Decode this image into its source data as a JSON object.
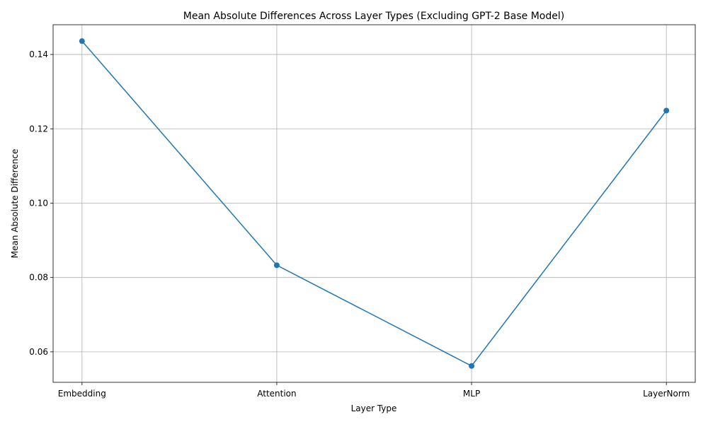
{
  "chart_data": {
    "type": "line",
    "title": "Mean Absolute Differences Across Layer Types (Excluding GPT-2 Base Model)",
    "xlabel": "Layer Type",
    "ylabel": "Mean Absolute Difference",
    "categories": [
      "Embedding",
      "Attention",
      "MLP",
      "LayerNorm"
    ],
    "series": [
      {
        "values": [
          0.1436,
          0.0833,
          0.0562,
          0.1249
        ]
      }
    ],
    "ylim": [
      0.0518,
      0.148
    ],
    "yticks": [
      0.06,
      0.08,
      0.1,
      0.12,
      0.14
    ],
    "ytick_labels": [
      "0.06",
      "0.08",
      "0.10",
      "0.12",
      "0.14"
    ],
    "grid": true,
    "marker": "circle",
    "line_color": "#1f77b4"
  }
}
